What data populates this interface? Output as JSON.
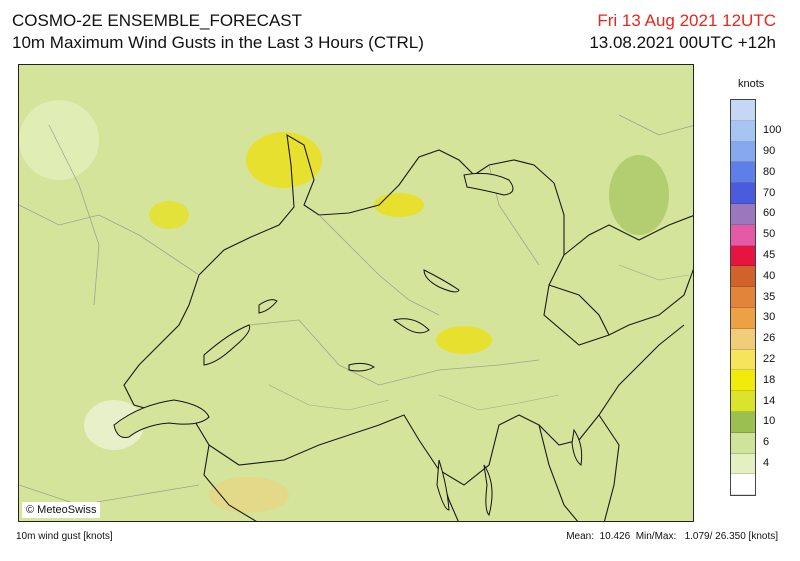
{
  "header": {
    "title": "COSMO-2E ENSEMBLE_FORECAST",
    "subtitle": "10m Maximum Wind Gusts in the Last 3 Hours (CTRL)",
    "valid_time": "Fri 13 Aug 2021 12UTC",
    "run_time": "13.08.2021 00UTC +12h",
    "valid_time_color": "#e8261c"
  },
  "map": {
    "credit": "© MeteoSwiss",
    "background_color": "#d4e49a"
  },
  "legend": {
    "unit": "knots",
    "levels": [
      {
        "label": "",
        "color": "#c4d8f6"
      },
      {
        "label": "100",
        "color": "#a8c4f2"
      },
      {
        "label": "90",
        "color": "#86a8ee"
      },
      {
        "label": "80",
        "color": "#5f7fe8"
      },
      {
        "label": "70",
        "color": "#4a5cdd"
      },
      {
        "label": "60",
        "color": "#9b78bd"
      },
      {
        "label": "50",
        "color": "#e55aa4"
      },
      {
        "label": "45",
        "color": "#e61441"
      },
      {
        "label": "40",
        "color": "#d0622c"
      },
      {
        "label": "35",
        "color": "#e2843a"
      },
      {
        "label": "30",
        "color": "#eda044"
      },
      {
        "label": "26",
        "color": "#f0cd78"
      },
      {
        "label": "22",
        "color": "#f6e55c"
      },
      {
        "label": "18",
        "color": "#f2ea0a"
      },
      {
        "label": "14",
        "color": "#dae42c"
      },
      {
        "label": "10",
        "color": "#9cbf52"
      },
      {
        "label": "6",
        "color": "#cfe39a"
      },
      {
        "label": "4",
        "color": "#e5f0c2"
      },
      {
        "label": "",
        "color": "#ffffff"
      }
    ]
  },
  "footer": {
    "left": "10m wind gust [knots]",
    "right": "Mean:  10.426  Min/Max:   1.079/ 26.350 [knots]"
  }
}
